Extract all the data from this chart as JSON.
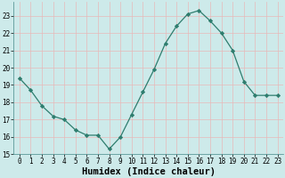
{
  "x": [
    0,
    1,
    2,
    3,
    4,
    5,
    6,
    7,
    8,
    9,
    10,
    11,
    12,
    13,
    14,
    15,
    16,
    17,
    18,
    19,
    20,
    21,
    22,
    23
  ],
  "y": [
    19.4,
    18.7,
    17.8,
    17.2,
    17.0,
    16.4,
    16.1,
    16.1,
    15.3,
    16.0,
    17.3,
    18.6,
    19.9,
    21.4,
    22.4,
    23.1,
    23.3,
    22.7,
    22.0,
    21.0,
    19.2,
    18.4,
    18.4,
    18.4
  ],
  "line_color": "#2e7d6e",
  "marker": "D",
  "marker_size": 2.2,
  "bg_color": "#cdeaea",
  "grid_color": "#e8b8b8",
  "xlabel": "Humidex (Indice chaleur)",
  "ylim": [
    15,
    23.8
  ],
  "yticks": [
    15,
    16,
    17,
    18,
    19,
    20,
    21,
    22,
    23
  ],
  "xlim": [
    -0.5,
    23.5
  ],
  "xticks": [
    0,
    1,
    2,
    3,
    4,
    5,
    6,
    7,
    8,
    9,
    10,
    11,
    12,
    13,
    14,
    15,
    16,
    17,
    18,
    19,
    20,
    21,
    22,
    23
  ],
  "tick_fontsize": 5.5,
  "xlabel_fontsize": 7.5
}
